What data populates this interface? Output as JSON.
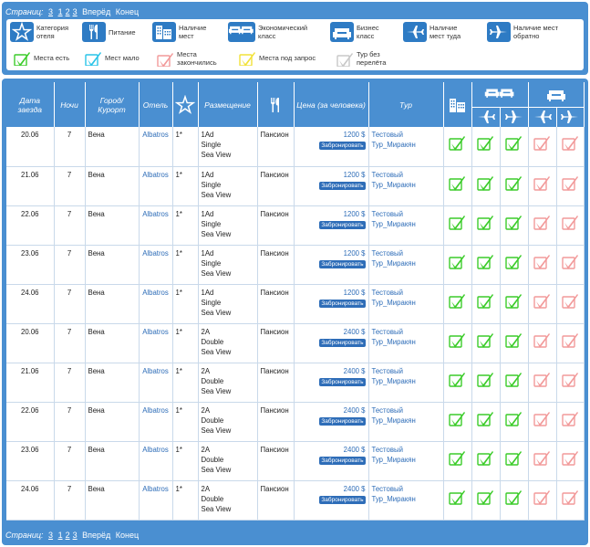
{
  "pager": {
    "label": "Страниц:",
    "pages": [
      "3",
      "1",
      "2",
      "3"
    ],
    "next": "Вперёд",
    "last": "Конец"
  },
  "legend": {
    "hotel_category": "Категория отеля",
    "meal": "Питание",
    "availability": "Наличие мест",
    "economy": "Экономический класс",
    "business": "Бизнес класс",
    "flight_there": "Наличие мест туда",
    "flight_back": "Наличие мест обратно",
    "places_yes": "Места есть",
    "places_few": "Мест мало",
    "places_none": "Места закончились",
    "places_request": "Места под запрос",
    "no_flight": "Тур без перелёта"
  },
  "colors": {
    "green": "#3ccc2a",
    "cyan": "#29c4e8",
    "pink": "#f29a9a",
    "yellow": "#f2e23a",
    "gray": "#c8c8c8",
    "blue": "#4a8fd1"
  },
  "table": {
    "headers": {
      "date": "Дата заезда",
      "nights": "Ночи",
      "city": "Город/ Курорт",
      "hotel": "Отель",
      "placement": "Размещение",
      "price": "Цена (за человека)",
      "tour": "Тур"
    },
    "book_label": "Забронировать",
    "rows": [
      {
        "date": "20.06",
        "nights": "7",
        "city": "Вена",
        "hotel": "Albatros",
        "cat": "1*",
        "room1": "1Ad",
        "room2": "Single",
        "room3": "Sea View",
        "meal": "Пансион",
        "price": "1200 $",
        "tour1": "Тестовый",
        "tour2": "Тур_Миракян",
        "status": [
          "green",
          "green",
          "green",
          "pink",
          "pink"
        ]
      },
      {
        "date": "21.06",
        "nights": "7",
        "city": "Вена",
        "hotel": "Albatros",
        "cat": "1*",
        "room1": "1Ad",
        "room2": "Single",
        "room3": "Sea View",
        "meal": "Пансион",
        "price": "1200 $",
        "tour1": "Тестовый",
        "tour2": "Тур_Миракян",
        "status": [
          "green",
          "green",
          "green",
          "pink",
          "pink"
        ]
      },
      {
        "date": "22.06",
        "nights": "7",
        "city": "Вена",
        "hotel": "Albatros",
        "cat": "1*",
        "room1": "1Ad",
        "room2": "Single",
        "room3": "Sea View",
        "meal": "Пансион",
        "price": "1200 $",
        "tour1": "Тестовый",
        "tour2": "Тур_Миракян",
        "status": [
          "green",
          "green",
          "green",
          "pink",
          "pink"
        ]
      },
      {
        "date": "23.06",
        "nights": "7",
        "city": "Вена",
        "hotel": "Albatros",
        "cat": "1*",
        "room1": "1Ad",
        "room2": "Single",
        "room3": "Sea View",
        "meal": "Пансион",
        "price": "1200 $",
        "tour1": "Тестовый",
        "tour2": "Тур_Миракян",
        "status": [
          "green",
          "green",
          "green",
          "pink",
          "pink"
        ]
      },
      {
        "date": "24.06",
        "nights": "7",
        "city": "Вена",
        "hotel": "Albatros",
        "cat": "1*",
        "room1": "1Ad",
        "room2": "Single",
        "room3": "Sea View",
        "meal": "Пансион",
        "price": "1200 $",
        "tour1": "Тестовый",
        "tour2": "Тур_Миракян",
        "status": [
          "green",
          "green",
          "green",
          "pink",
          "pink"
        ]
      },
      {
        "date": "20.06",
        "nights": "7",
        "city": "Вена",
        "hotel": "Albatros",
        "cat": "1*",
        "room1": "2A",
        "room2": "Double",
        "room3": "Sea View",
        "meal": "Пансион",
        "price": "2400 $",
        "tour1": "Тестовый",
        "tour2": "Тур_Миракян",
        "status": [
          "green",
          "green",
          "green",
          "pink",
          "pink"
        ]
      },
      {
        "date": "21.06",
        "nights": "7",
        "city": "Вена",
        "hotel": "Albatros",
        "cat": "1*",
        "room1": "2A",
        "room2": "Double",
        "room3": "Sea View",
        "meal": "Пансион",
        "price": "2400 $",
        "tour1": "Тестовый",
        "tour2": "Тур_Миракян",
        "status": [
          "green",
          "green",
          "green",
          "pink",
          "pink"
        ]
      },
      {
        "date": "22.06",
        "nights": "7",
        "city": "Вена",
        "hotel": "Albatros",
        "cat": "1*",
        "room1": "2A",
        "room2": "Double",
        "room3": "Sea View",
        "meal": "Пансион",
        "price": "2400 $",
        "tour1": "Тестовый",
        "tour2": "Тур_Миракян",
        "status": [
          "green",
          "green",
          "green",
          "pink",
          "pink"
        ]
      },
      {
        "date": "23.06",
        "nights": "7",
        "city": "Вена",
        "hotel": "Albatros",
        "cat": "1*",
        "room1": "2A",
        "room2": "Double",
        "room3": "Sea View",
        "meal": "Пансион",
        "price": "2400 $",
        "tour1": "Тестовый",
        "tour2": "Тур_Миракян",
        "status": [
          "green",
          "green",
          "green",
          "pink",
          "pink"
        ]
      },
      {
        "date": "24.06",
        "nights": "7",
        "city": "Вена",
        "hotel": "Albatros",
        "cat": "1*",
        "room1": "2A",
        "room2": "Double",
        "room3": "Sea View",
        "meal": "Пансион",
        "price": "2400 $",
        "tour1": "Тестовый",
        "tour2": "Тур_Миракян",
        "status": [
          "green",
          "green",
          "green",
          "pink",
          "pink"
        ]
      }
    ]
  }
}
